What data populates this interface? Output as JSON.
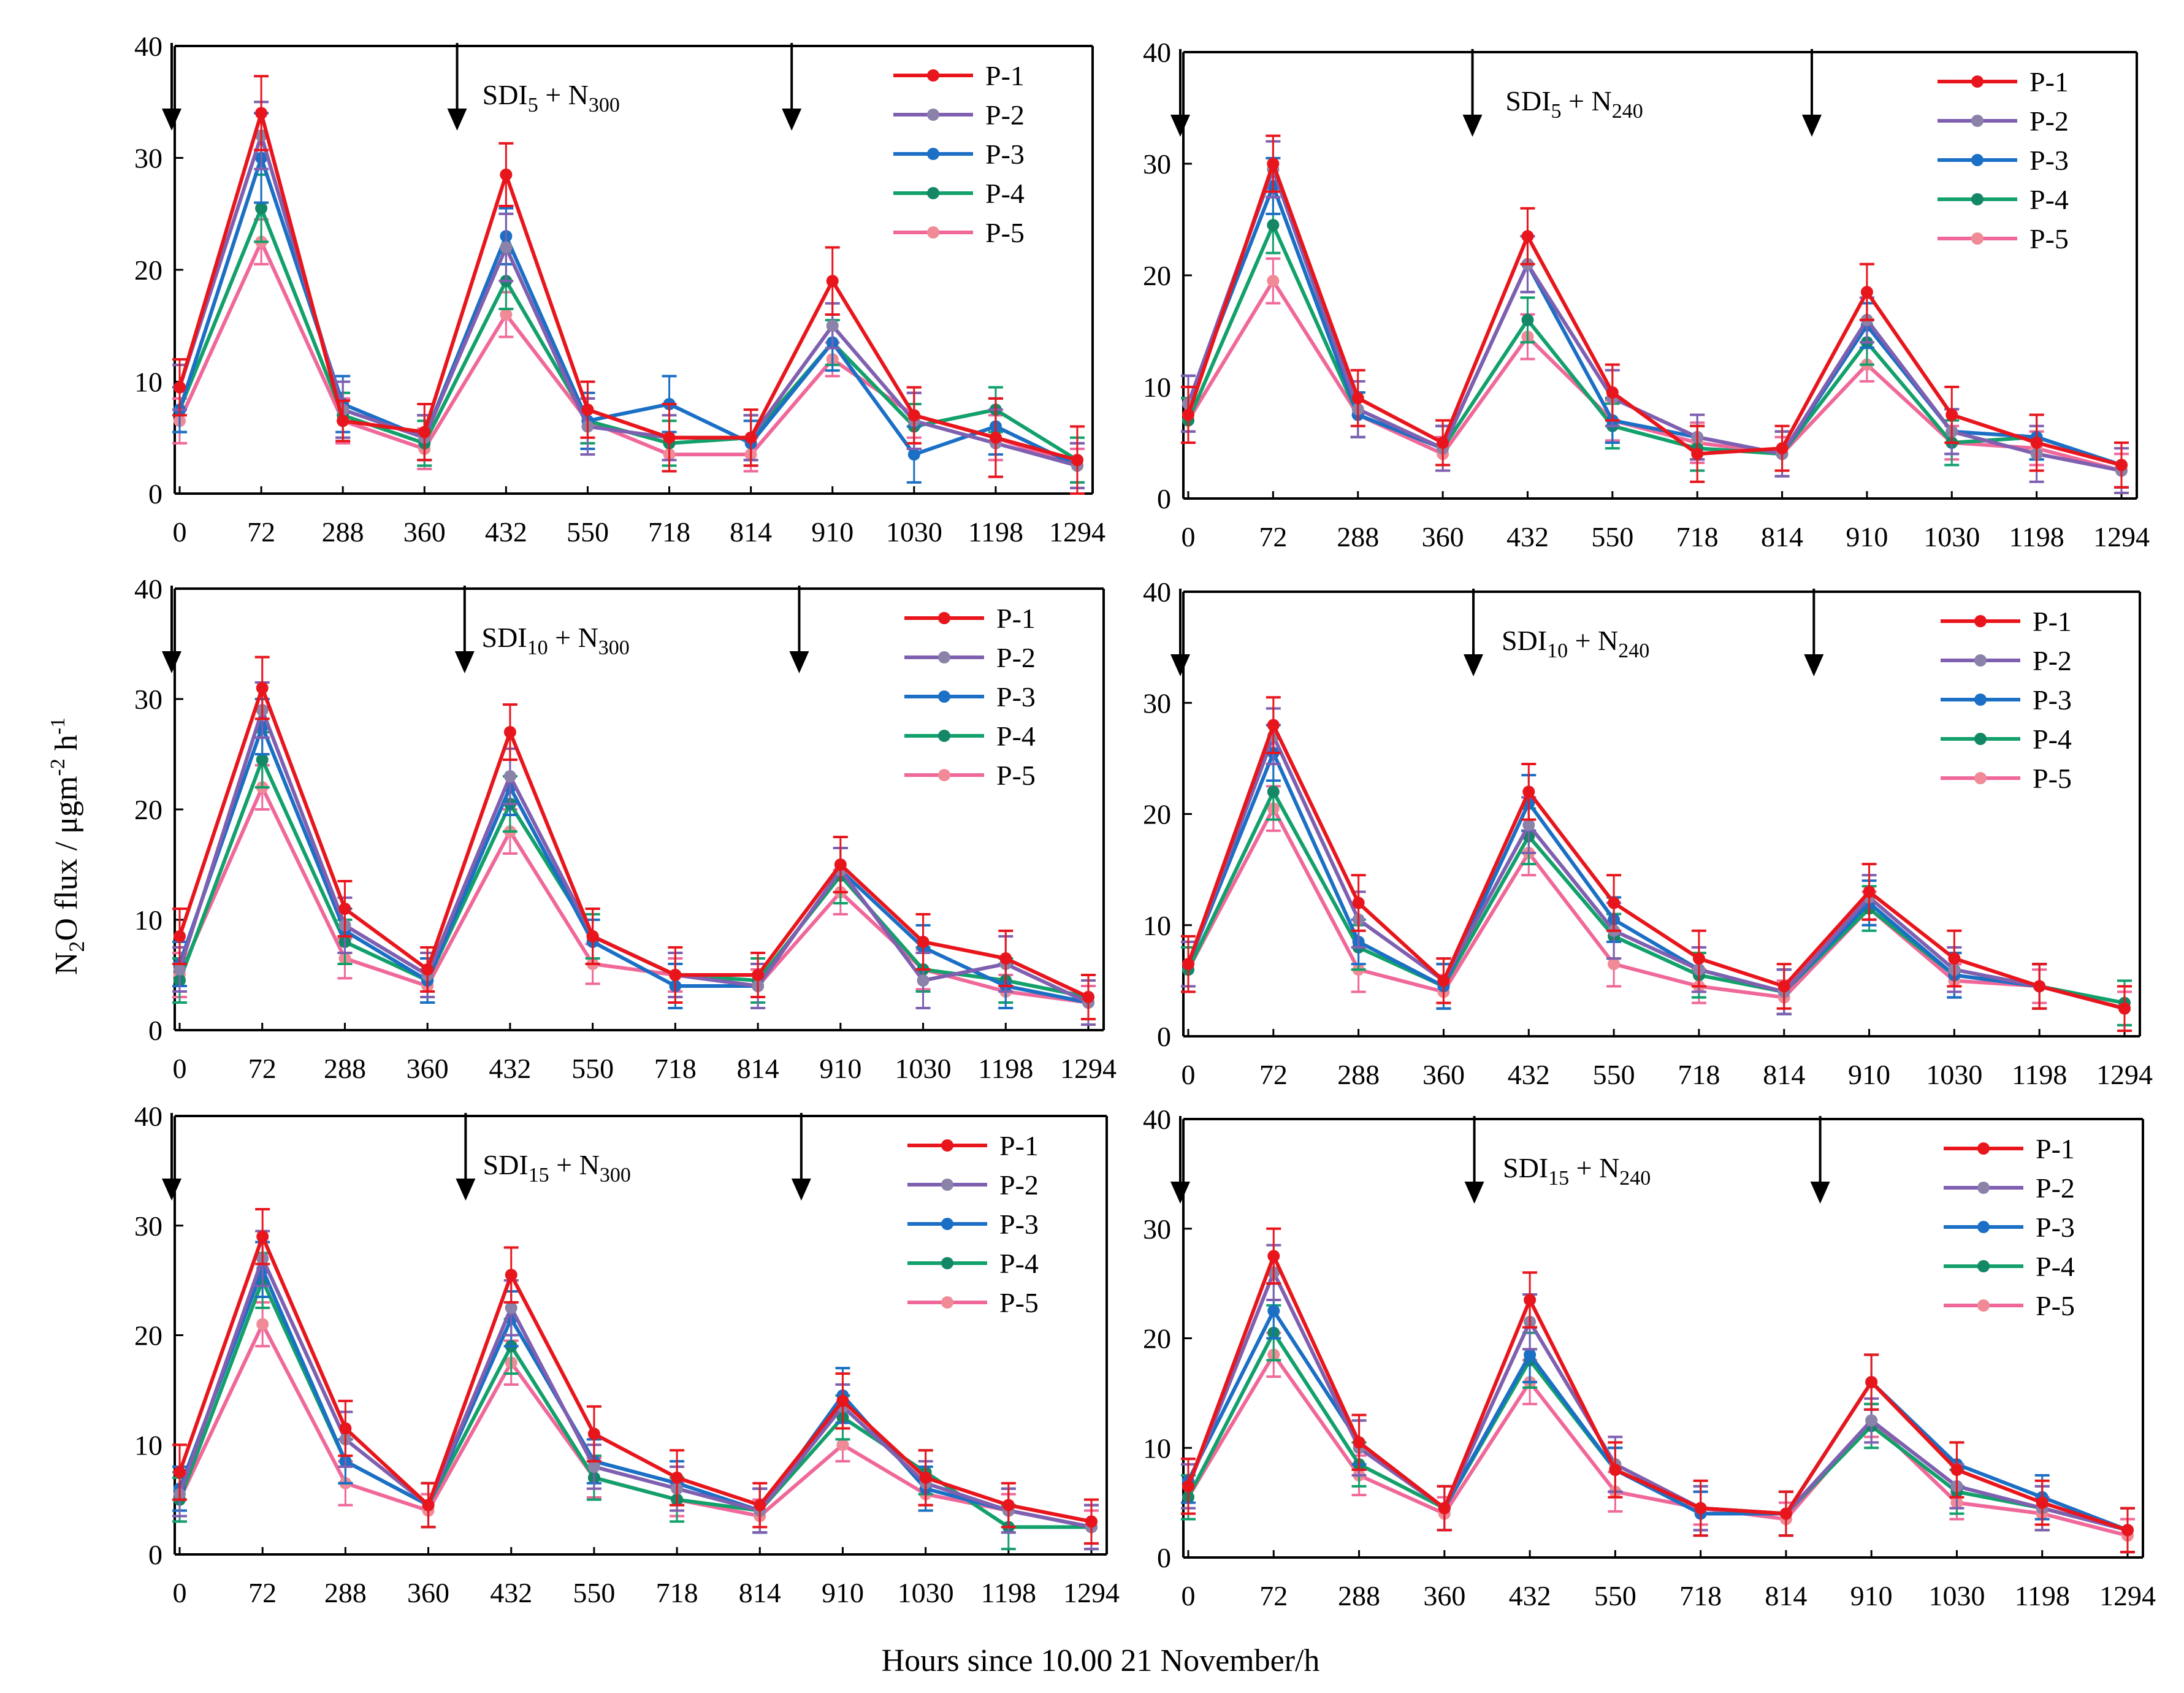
{
  "chart_data": {
    "type": "line",
    "ylabel_parts": {
      "a": "N",
      "b": "2",
      "c": "O flux / μgm",
      "d": "-2",
      "e": " h",
      "f": "-1"
    },
    "xlabel": "Hours since 10.00 21 November/h",
    "categories": [
      "0",
      "72",
      "288",
      "360",
      "432",
      "550",
      "718",
      "814",
      "910",
      "1030",
      "1198",
      "1294"
    ],
    "yticks": [
      "0",
      "10",
      "20",
      "30",
      "40"
    ],
    "ylim": [
      0,
      40
    ],
    "legend_position": "top-right",
    "series_colors": [
      "#e8161c",
      "#7f5fb0",
      "#1b6fc5",
      "#12a06b",
      "#f0689a"
    ],
    "marker_colors": [
      "#e8161c",
      "#8a82a8",
      "#1b6fc5",
      "#138766",
      "#f08a96"
    ],
    "panels": [
      {
        "title": {
          "main": "SDI",
          "sub1": "5",
          "mid": " + N",
          "sub2": "300"
        },
        "arrows_at": [
          0,
          3.4,
          7.5
        ],
        "series": [
          {
            "name": "P-1",
            "values": [
              9.5,
              34,
              6.5,
              5.5,
              28.5,
              7.5,
              5,
              5,
              19,
              7,
              5,
              3
            ],
            "err": [
              2.5,
              3.3,
              1.8,
              2.5,
              2.8,
              2.5,
              3,
              2.5,
              3,
              2.5,
              3.5,
              3
            ]
          },
          {
            "name": "P-2",
            "values": [
              9.5,
              32,
              7.5,
              5,
              22,
              6,
              5,
              5,
              15,
              6.5,
              4.5,
              2.5
            ],
            "err": [
              2,
              3,
              2.5,
              2,
              3,
              2.5,
              2,
              2,
              2,
              2.5,
              3,
              2
            ]
          },
          {
            "name": "P-3",
            "values": [
              7.5,
              30,
              8,
              5,
              23,
              6.5,
              8,
              4.5,
              13.5,
              3.5,
              6,
              2.5
            ],
            "err": [
              2,
              4,
              2.5,
              2,
              2.5,
              2.5,
              2.5,
              2,
              2.5,
              2.5,
              2.5,
              2
            ]
          },
          {
            "name": "P-4",
            "values": [
              7.5,
              25.5,
              7,
              4.5,
              19,
              6.5,
              4.5,
              5,
              13.5,
              6,
              7.5,
              3
            ],
            "err": [
              2,
              3,
              2,
              2,
              2.5,
              2,
              2,
              2,
              2,
              2,
              2,
              2
            ]
          },
          {
            "name": "P-5",
            "values": [
              6.5,
              22.5,
              6.5,
              4,
              16,
              6.5,
              3.5,
              3.5,
              12,
              7,
              5,
              2.5
            ],
            "err": [
              2,
              2,
              2,
              1.8,
              2,
              2,
              1.5,
              1.5,
              1.5,
              2,
              2,
              1.5
            ]
          }
        ]
      },
      {
        "title": {
          "main": "SDI",
          "sub1": "5",
          "mid": " + N",
          "sub2": "240"
        },
        "arrows_at": [
          0,
          3.35,
          7.35
        ],
        "series": [
          {
            "name": "P-1",
            "values": [
              7.5,
              30,
              9,
              5,
              23.5,
              9.5,
              4,
              4.5,
              18.5,
              7.5,
              5,
              3
            ],
            "err": [
              2.5,
              2.5,
              2.5,
              2,
              2.5,
              2.5,
              2.5,
              2,
              2.5,
              2.5,
              2.5,
              2
            ]
          },
          {
            "name": "P-2",
            "values": [
              8.5,
              29.5,
              8,
              4.5,
              21,
              9,
              5.5,
              4,
              16,
              6,
              4,
              2.5
            ],
            "err": [
              2.5,
              2.5,
              2.5,
              2,
              2.5,
              2.5,
              2,
              2,
              2,
              2,
              2.5,
              2
            ]
          },
          {
            "name": "P-3",
            "values": [
              8.5,
              28,
              7.5,
              4.5,
              21,
              7,
              5.5,
              4,
              15.5,
              6,
              5.5,
              3
            ],
            "err": [
              2.5,
              2.5,
              2,
              2,
              2.5,
              2,
              2,
              2,
              2,
              2,
              2,
              2
            ]
          },
          {
            "name": "P-4",
            "values": [
              7,
              24.5,
              7.5,
              4.5,
              16,
              6.5,
              4.5,
              4,
              14,
              5,
              5.5,
              3
            ],
            "err": [
              2,
              2.5,
              2,
              2,
              2,
              2,
              2,
              2,
              2,
              2,
              2,
              2
            ]
          },
          {
            "name": "P-5",
            "values": [
              7,
              19.5,
              7.5,
              4,
              14.5,
              7,
              5,
              4,
              12,
              5,
              4.5,
              2.5
            ],
            "err": [
              2,
              2,
              2,
              1.5,
              2,
              1.8,
              1.8,
              1.5,
              1.5,
              1.5,
              1.5,
              1.5
            ]
          }
        ]
      },
      {
        "title": {
          "main": "SDI",
          "sub1": "10",
          "mid": " + N",
          "sub2": "300"
        },
        "arrows_at": [
          0,
          3.45,
          7.5
        ],
        "series": [
          {
            "name": "P-1",
            "values": [
              8.5,
              31,
              11,
              5.5,
              27,
              8.5,
              5,
              5,
              15,
              8,
              6.5,
              3
            ],
            "err": [
              2.5,
              2.8,
              2.5,
              2,
              2.5,
              2.5,
              2.5,
              2,
              2.5,
              2.5,
              2.5,
              2
            ]
          },
          {
            "name": "P-2",
            "values": [
              5.5,
              29,
              9.5,
              5,
              23,
              8.5,
              5,
              4,
              14.5,
              4.5,
              6,
              2.5
            ],
            "err": [
              2,
              2.5,
              2.5,
              2,
              2.5,
              2.5,
              2,
              2,
              2,
              2.5,
              2.5,
              2
            ]
          },
          {
            "name": "P-3",
            "values": [
              6,
              27.5,
              9,
              4.5,
              22,
              8,
              4,
              4,
              14.5,
              7.5,
              4,
              2.5
            ],
            "err": [
              2,
              2.5,
              2,
              2,
              2.5,
              2,
              2,
              2,
              2,
              2,
              2,
              2
            ]
          },
          {
            "name": "P-4",
            "values": [
              4.5,
              24.5,
              8,
              4.5,
              20.5,
              8.5,
              5,
              4.5,
              14,
              5.5,
              4.5,
              3
            ],
            "err": [
              2,
              2.5,
              2,
              2,
              2.5,
              2,
              2,
              2,
              2.5,
              2,
              2,
              2
            ]
          },
          {
            "name": "P-5",
            "values": [
              5,
              22,
              6.5,
              4,
              18,
              6,
              5,
              4,
              12.5,
              5.5,
              3.5,
              2.5
            ],
            "err": [
              2,
              2,
              1.8,
              1.5,
              2,
              1.8,
              1.5,
              1.5,
              2,
              1.8,
              1.5,
              1.5
            ]
          }
        ]
      },
      {
        "title": {
          "main": "SDI",
          "sub1": "10",
          "mid": " + N",
          "sub2": "240"
        },
        "arrows_at": [
          0,
          3.35,
          7.35
        ],
        "series": [
          {
            "name": "P-1",
            "values": [
              6.5,
              28,
              12,
              5,
              22,
              12,
              7,
              4.5,
              13,
              7,
              4.5,
              2.5
            ],
            "err": [
              2.5,
              2.5,
              2.5,
              2,
              2.5,
              2.5,
              2.5,
              2,
              2.5,
              2.5,
              2,
              2
            ]
          },
          {
            "name": "P-2",
            "values": [
              6.5,
              27,
              10.5,
              5,
              19,
              9.5,
              6,
              4,
              12.5,
              6,
              4.5,
              2.5
            ],
            "err": [
              2,
              2.5,
              2.5,
              2,
              2.5,
              2.5,
              2,
              2,
              2,
              2,
              2,
              2
            ]
          },
          {
            "name": "P-3",
            "values": [
              6.5,
              25.5,
              8.5,
              4.5,
              21,
              10.5,
              6,
              4,
              12,
              5.5,
              4.5,
              2.5
            ],
            "err": [
              2,
              2.5,
              2,
              2,
              2.5,
              2,
              2,
              2,
              2,
              2,
              2,
              2
            ]
          },
          {
            "name": "P-4",
            "values": [
              6,
              22,
              8,
              4.5,
              18,
              9,
              5.5,
              4,
              11.5,
              5.5,
              4.5,
              3
            ],
            "err": [
              2,
              2.5,
              2,
              2,
              2.5,
              2,
              2,
              2,
              2,
              2,
              2,
              2
            ]
          },
          {
            "name": "P-5",
            "values": [
              6,
              20.5,
              6,
              4,
              16.5,
              6.5,
              4.5,
              3.5,
              11.5,
              5,
              4.5,
              2.5
            ],
            "err": [
              2,
              2,
              2,
              1.5,
              2,
              2,
              1.5,
              1.5,
              1.5,
              1.5,
              1.5,
              1.5
            ]
          }
        ]
      },
      {
        "title": {
          "main": "SDI",
          "sub1": "15",
          "mid": " + N",
          "sub2": "300"
        },
        "arrows_at": [
          0,
          3.45,
          7.5
        ],
        "series": [
          {
            "name": "P-1",
            "values": [
              7.5,
              29,
              11.5,
              4.5,
              25.5,
              11,
              7,
              4.5,
              14,
              7,
              4.5,
              3
            ],
            "err": [
              2.5,
              2.5,
              2.5,
              2,
              2.5,
              2.5,
              2.5,
              2,
              2.5,
              2.5,
              2,
              2
            ]
          },
          {
            "name": "P-2",
            "values": [
              5.5,
              27,
              10.5,
              4.5,
              22.5,
              8,
              6,
              4,
              13.5,
              6.5,
              4,
              2.5
            ],
            "err": [
              2,
              2.5,
              2.5,
              2,
              2.5,
              2,
              2,
              2,
              2,
              2,
              2,
              2
            ]
          },
          {
            "name": "P-3",
            "values": [
              6,
              26,
              8.5,
              4.5,
              21.5,
              8.5,
              6.5,
              4,
              14.5,
              6,
              4,
              2.5
            ],
            "err": [
              2,
              2.5,
              2,
              2,
              2.5,
              2,
              2,
              2,
              2.5,
              2,
              2,
              2
            ]
          },
          {
            "name": "P-4",
            "values": [
              5,
              25,
              8.5,
              4.5,
              19,
              7,
              5,
              4,
              12.5,
              7.5,
              2.5,
              2.5
            ],
            "err": [
              2,
              2.5,
              2,
              2,
              2.5,
              2,
              2,
              2,
              2,
              2,
              2,
              2
            ]
          },
          {
            "name": "P-5",
            "values": [
              5,
              21,
              6.5,
              4,
              17.5,
              7,
              5,
              3.5,
              10,
              5.5,
              4,
              2.5
            ],
            "err": [
              2,
              2,
              2,
              1.5,
              2,
              1.8,
              1.5,
              1.5,
              1.5,
              1.5,
              1.5,
              1.5
            ]
          }
        ]
      },
      {
        "title": {
          "main": "SDI",
          "sub1": "15",
          "mid": " + N",
          "sub2": "240"
        },
        "arrows_at": [
          0,
          3.35,
          7.4
        ],
        "series": [
          {
            "name": "P-1",
            "values": [
              6.5,
              27.5,
              10.5,
              4.5,
              23.5,
              8,
              4.5,
              4,
              16,
              8,
              5,
              2.5
            ],
            "err": [
              2.5,
              2.5,
              2.5,
              2,
              2.5,
              2.5,
              2.5,
              2,
              2.5,
              2.5,
              2,
              2
            ]
          },
          {
            "name": "P-2",
            "values": [
              6.5,
              26,
              10,
              4.5,
              21.5,
              8.5,
              4.5,
              4,
              12.5,
              6.5,
              4.5,
              2.5
            ],
            "err": [
              2,
              2.5,
              2.5,
              2,
              2.5,
              2.5,
              2,
              2,
              2,
              2,
              2,
              2
            ]
          },
          {
            "name": "P-3",
            "values": [
              7,
              22.5,
              10.5,
              4.5,
              18.5,
              8,
              4,
              4,
              16,
              8.5,
              5.5,
              2.5
            ],
            "err": [
              2,
              2.5,
              2,
              2,
              2.5,
              2,
              2,
              2,
              2.5,
              2,
              2,
              2
            ]
          },
          {
            "name": "P-4",
            "values": [
              5.5,
              20.5,
              8.5,
              4.5,
              18,
              8,
              4.5,
              4,
              12,
              6,
              4.5,
              2.5
            ],
            "err": [
              2,
              2.5,
              2,
              2,
              2.5,
              2,
              2,
              2,
              2,
              2,
              2,
              2
            ]
          },
          {
            "name": "P-5",
            "values": [
              5.5,
              18.5,
              7.5,
              4,
              16,
              6,
              4.5,
              3.5,
              12.5,
              5,
              4,
              2
            ],
            "err": [
              2,
              2,
              1.8,
              1.5,
              2,
              1.8,
              1.5,
              1.5,
              1.5,
              1.5,
              1.5,
              1.5
            ]
          }
        ]
      }
    ]
  }
}
